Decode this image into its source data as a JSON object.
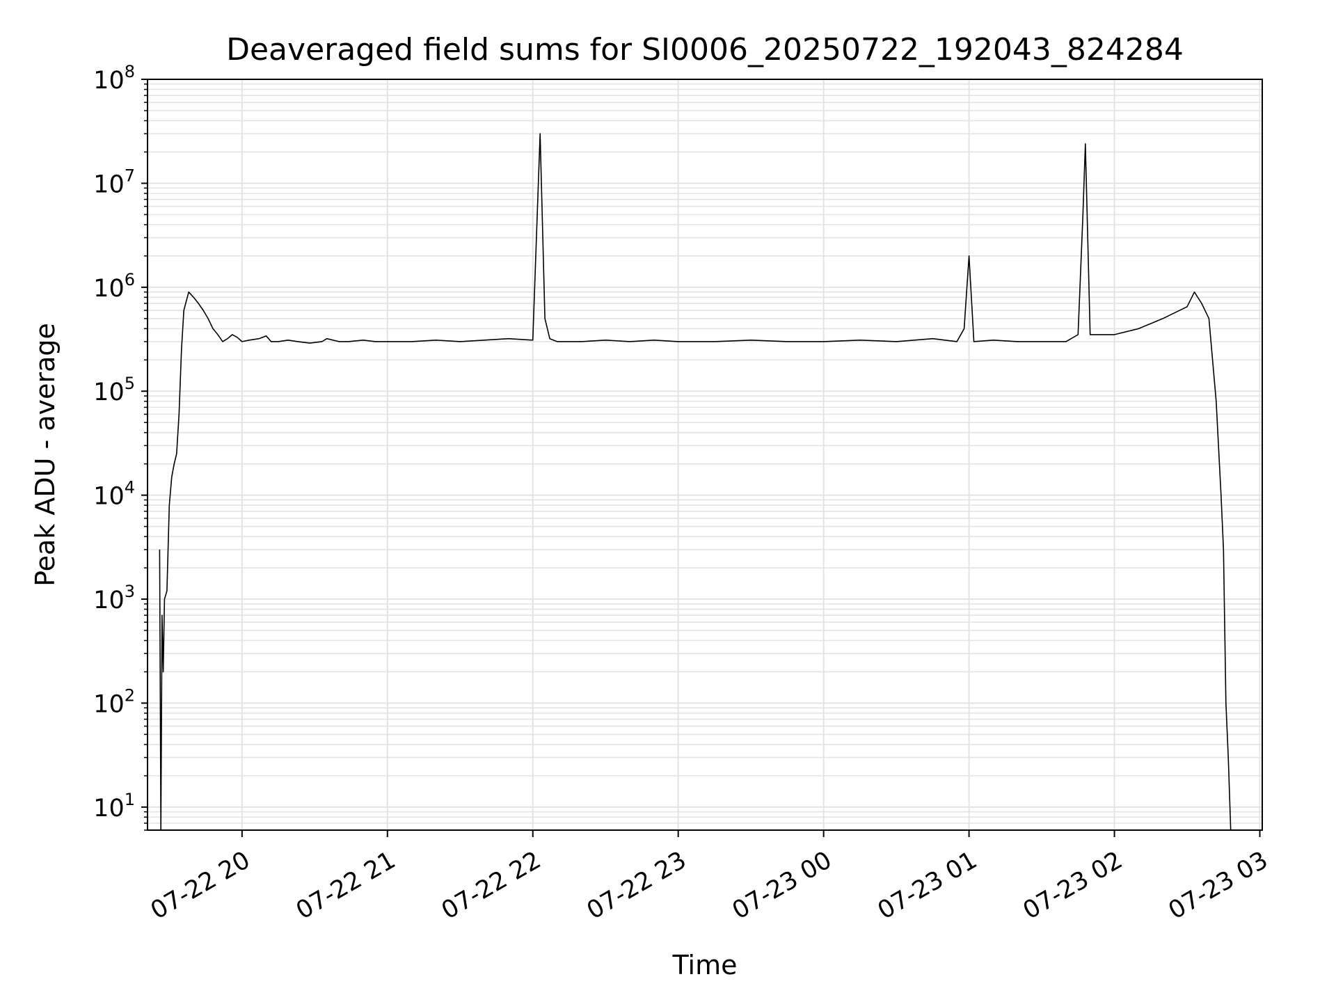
{
  "chart_data": {
    "type": "line",
    "title": "Deaveraged field sums for SI0006_20250722_192043_824284",
    "xlabel": "Time",
    "ylabel": "Peak ADU - average",
    "y_scale": "log",
    "ylim": [
      6,
      100000000
    ],
    "xlim": [
      "2025-07-22 19:21",
      "2025-07-23 03:01"
    ],
    "grid": true,
    "line_color": "#000000",
    "grid_color": "#e3e3e3",
    "x_ticks": [
      {
        "value": "2025-07-22 20:00",
        "label": "07-22 20"
      },
      {
        "value": "2025-07-22 21:00",
        "label": "07-22 21"
      },
      {
        "value": "2025-07-22 22:00",
        "label": "07-22 22"
      },
      {
        "value": "2025-07-22 23:00",
        "label": "07-22 23"
      },
      {
        "value": "2025-07-23 00:00",
        "label": "07-23 00"
      },
      {
        "value": "2025-07-23 01:00",
        "label": "07-23 01"
      },
      {
        "value": "2025-07-23 02:00",
        "label": "07-23 02"
      },
      {
        "value": "2025-07-23 03:00",
        "label": "07-23 03"
      }
    ],
    "y_ticks": [
      {
        "value": 10,
        "base": "10",
        "exp": "1"
      },
      {
        "value": 100,
        "base": "10",
        "exp": "2"
      },
      {
        "value": 1000,
        "base": "10",
        "exp": "3"
      },
      {
        "value": 10000,
        "base": "10",
        "exp": "4"
      },
      {
        "value": 100000,
        "base": "10",
        "exp": "5"
      },
      {
        "value": 1000000,
        "base": "10",
        "exp": "6"
      },
      {
        "value": 10000000,
        "base": "10",
        "exp": "7"
      },
      {
        "value": 100000000,
        "base": "10",
        "exp": "8"
      }
    ],
    "series": [
      {
        "x": [
          "2025-07-22 19:26",
          "2025-07-22 19:26:30",
          "2025-07-22 19:27",
          "2025-07-22 19:27:30",
          "2025-07-22 19:28",
          "2025-07-22 19:29",
          "2025-07-22 19:30",
          "2025-07-22 19:31",
          "2025-07-22 19:32",
          "2025-07-22 19:33",
          "2025-07-22 19:34",
          "2025-07-22 19:35",
          "2025-07-22 19:36",
          "2025-07-22 19:38",
          "2025-07-22 19:40",
          "2025-07-22 19:42",
          "2025-07-22 19:44",
          "2025-07-22 19:46",
          "2025-07-22 19:48",
          "2025-07-22 19:50",
          "2025-07-22 19:52",
          "2025-07-22 19:54",
          "2025-07-22 19:56",
          "2025-07-22 19:58",
          "2025-07-22 20:00",
          "2025-07-22 20:03",
          "2025-07-22 20:07",
          "2025-07-22 20:10",
          "2025-07-22 20:12",
          "2025-07-22 20:15",
          "2025-07-22 20:19",
          "2025-07-22 20:23",
          "2025-07-22 20:28",
          "2025-07-22 20:33",
          "2025-07-22 20:35",
          "2025-07-22 20:40",
          "2025-07-22 20:44",
          "2025-07-22 20:50",
          "2025-07-22 20:55",
          "2025-07-22 21:00",
          "2025-07-22 21:10",
          "2025-07-22 21:20",
          "2025-07-22 21:30",
          "2025-07-22 21:40",
          "2025-07-22 21:50",
          "2025-07-22 22:00",
          "2025-07-22 22:03",
          "2025-07-22 22:05",
          "2025-07-22 22:07",
          "2025-07-22 22:10",
          "2025-07-22 22:20",
          "2025-07-22 22:30",
          "2025-07-22 22:40",
          "2025-07-22 22:50",
          "2025-07-22 23:00",
          "2025-07-22 23:15",
          "2025-07-22 23:30",
          "2025-07-22 23:45",
          "2025-07-23 00:00",
          "2025-07-23 00:15",
          "2025-07-23 00:30",
          "2025-07-23 00:45",
          "2025-07-23 00:55",
          "2025-07-23 00:58",
          "2025-07-23 01:00",
          "2025-07-23 01:02",
          "2025-07-23 01:10",
          "2025-07-23 01:20",
          "2025-07-23 01:30",
          "2025-07-23 01:40",
          "2025-07-23 01:45",
          "2025-07-23 01:47",
          "2025-07-23 01:48",
          "2025-07-23 01:50",
          "2025-07-23 02:00",
          "2025-07-23 02:10",
          "2025-07-23 02:20",
          "2025-07-23 02:30",
          "2025-07-23 02:33",
          "2025-07-23 02:36",
          "2025-07-23 02:39",
          "2025-07-23 02:42",
          "2025-07-23 02:44",
          "2025-07-23 02:45",
          "2025-07-23 02:46",
          "2025-07-23 02:47",
          "2025-07-23 02:48"
        ],
        "y": [
          3000,
          6,
          700,
          200,
          1000,
          1200,
          8000,
          15000,
          20000,
          25000,
          60000,
          250000,
          600000,
          900000,
          800000,
          700000,
          600000,
          500000,
          400000,
          350000,
          300000,
          320000,
          350000,
          330000,
          300000,
          310000,
          320000,
          340000,
          300000,
          300000,
          310000,
          300000,
          290000,
          300000,
          320000,
          300000,
          300000,
          310000,
          300000,
          300000,
          300000,
          310000,
          300000,
          310000,
          320000,
          310000,
          30000000,
          500000,
          320000,
          300000,
          300000,
          310000,
          300000,
          310000,
          300000,
          300000,
          310000,
          300000,
          300000,
          310000,
          300000,
          320000,
          300000,
          400000,
          2000000,
          300000,
          310000,
          300000,
          300000,
          300000,
          350000,
          5000000,
          24000000,
          350000,
          350000,
          400000,
          500000,
          650000,
          900000,
          700000,
          500000,
          80000,
          10000,
          3000,
          100,
          30,
          6
        ]
      }
    ]
  }
}
